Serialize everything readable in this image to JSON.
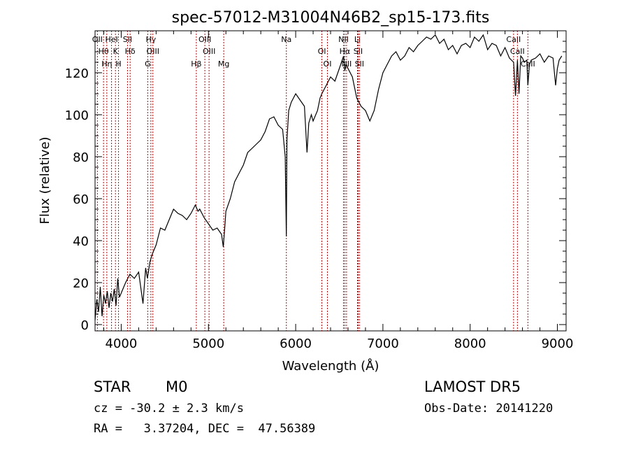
{
  "chart_data": {
    "type": "line",
    "title": "spec-57012-M31004N46B2_sp15-173.fits",
    "xlabel": "Wavelength (Å)",
    "ylabel": "Flux (relative)",
    "xlim": [
      3700,
      9100
    ],
    "ylim": [
      -3,
      140
    ],
    "xticks": [
      4000,
      5000,
      6000,
      7000,
      8000,
      9000
    ],
    "yticks": [
      0,
      20,
      40,
      60,
      80,
      100,
      120
    ],
    "grid": false,
    "series": [
      {
        "x": [
          3700,
          3720,
          3740,
          3760,
          3780,
          3800,
          3820,
          3840,
          3860,
          3880,
          3900,
          3920,
          3940,
          3960,
          3980,
          4000,
          4050,
          4100,
          4150,
          4200,
          4250,
          4280,
          4300,
          4330,
          4360,
          4400,
          4450,
          4500,
          4550,
          4600,
          4650,
          4700,
          4750,
          4800,
          4850,
          4880,
          4900,
          4950,
          5000,
          5050,
          5100,
          5150,
          5170,
          5190,
          5200,
          5250,
          5300,
          5350,
          5400,
          5450,
          5500,
          5550,
          5600,
          5650,
          5700,
          5750,
          5800,
          5850,
          5880,
          5893,
          5900,
          5920,
          5950,
          6000,
          6050,
          6100,
          6130,
          6150,
          6180,
          6200,
          6250,
          6280,
          6300,
          6350,
          6400,
          6450,
          6500,
          6550,
          6563,
          6580,
          6600,
          6650,
          6700,
          6750,
          6800,
          6850,
          6900,
          6950,
          7000,
          7050,
          7100,
          7150,
          7200,
          7250,
          7300,
          7350,
          7400,
          7450,
          7500,
          7550,
          7600,
          7650,
          7700,
          7750,
          7800,
          7850,
          7900,
          7950,
          8000,
          8050,
          8100,
          8150,
          8200,
          8250,
          8300,
          8350,
          8400,
          8450,
          8498,
          8520,
          8542,
          8560,
          8580,
          8600,
          8620,
          8650,
          8662,
          8680,
          8700,
          8750,
          8800,
          8850,
          8900,
          8950,
          8980,
          9000,
          9020,
          9050
        ],
        "y": [
          2,
          12,
          6,
          18,
          4,
          14,
          10,
          16,
          8,
          15,
          11,
          17,
          9,
          22,
          13,
          15,
          20,
          24,
          22,
          25,
          10,
          27,
          22,
          30,
          34,
          38,
          46,
          45,
          50,
          55,
          53,
          52,
          50,
          53,
          57,
          54,
          55,
          51,
          48,
          45,
          46,
          43,
          37,
          48,
          54,
          60,
          68,
          72,
          76,
          82,
          84,
          86,
          88,
          92,
          98,
          99,
          95,
          93,
          80,
          42,
          88,
          102,
          106,
          110,
          107,
          104,
          82,
          96,
          100,
          97,
          102,
          108,
          110,
          114,
          118,
          116,
          122,
          128,
          121,
          124,
          122,
          118,
          108,
          104,
          102,
          97,
          102,
          112,
          120,
          124,
          128,
          130,
          126,
          128,
          132,
          130,
          133,
          135,
          137,
          136,
          138,
          134,
          136,
          131,
          133,
          129,
          133,
          134,
          132,
          137,
          135,
          138,
          131,
          134,
          133,
          128,
          132,
          127,
          125,
          109,
          126,
          110,
          128,
          127,
          125,
          126,
          114,
          124,
          126,
          127,
          129,
          125,
          128,
          127,
          114,
          122,
          126,
          128
        ]
      }
    ],
    "lines": [
      {
        "wl": 3727,
        "label": "OII"
      },
      {
        "wl": 3797,
        "label": "Hθ"
      },
      {
        "wl": 3835,
        "label": "Hη"
      },
      {
        "wl": 3889,
        "label": "HeI"
      },
      {
        "wl": 3934,
        "label": "K"
      },
      {
        "wl": 3969,
        "label": "H"
      },
      {
        "wl": 4072,
        "label": "SII"
      },
      {
        "wl": 4102,
        "label": "Hδ"
      },
      {
        "wl": 4304,
        "label": "G"
      },
      {
        "wl": 4340,
        "label": "Hγ"
      },
      {
        "wl": 4363,
        "label": "OIII"
      },
      {
        "wl": 4861,
        "label": "Hβ"
      },
      {
        "wl": 4959,
        "label": "OIII"
      },
      {
        "wl": 5007,
        "label": "OIII"
      },
      {
        "wl": 5175,
        "label": "Mg"
      },
      {
        "wl": 5893,
        "label": "Na"
      },
      {
        "wl": 6300,
        "label": "OI"
      },
      {
        "wl": 6364,
        "label": "OI"
      },
      {
        "wl": 6548,
        "label": "NII"
      },
      {
        "wl": 6563,
        "label": "Hα"
      },
      {
        "wl": 6583,
        "label": "NII"
      },
      {
        "wl": 6708,
        "label": "Li"
      },
      {
        "wl": 6716,
        "label": "SII"
      },
      {
        "wl": 6731,
        "label": "SII"
      },
      {
        "wl": 8498,
        "label": "CaII"
      },
      {
        "wl": 8542,
        "label": "CaII"
      },
      {
        "wl": 8662,
        "label": "CaII"
      }
    ],
    "line_color": "#cc0000",
    "spectrum_color": "#000000"
  },
  "info": {
    "class_label": "STAR",
    "subclass_label": "M0",
    "survey": "LAMOST DR5",
    "redshift": "cz = -30.2 ± 2.3 km/s",
    "obs_date": "Obs-Date: 20141220",
    "coords": "RA =   3.37204, DEC =  47.56389"
  }
}
